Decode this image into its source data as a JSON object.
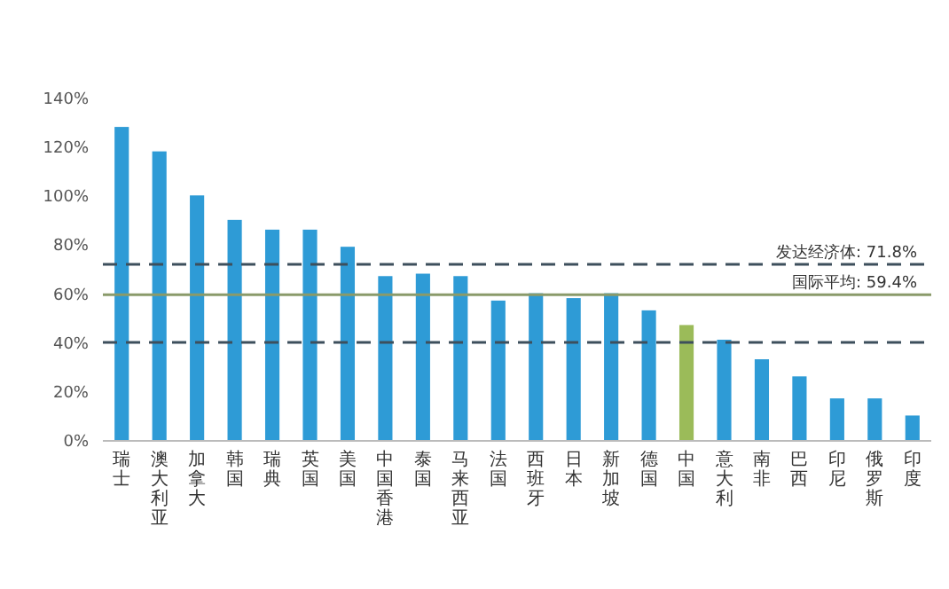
{
  "chart_data": {
    "type": "bar",
    "categories": [
      "瑞士",
      "澳大利亚",
      "加拿大",
      "韩国",
      "瑞典",
      "英国",
      "美国",
      "中国香港",
      "泰国",
      "马来西亚",
      "法国",
      "西班牙",
      "日本",
      "新加坡",
      "德国",
      "中国",
      "意大利",
      "南非",
      "巴西",
      "印尼",
      "俄罗斯",
      "印度"
    ],
    "values": [
      128,
      118,
      100,
      90,
      86,
      86,
      79,
      67,
      68,
      67,
      57,
      60,
      58,
      60,
      53,
      47,
      41,
      33,
      26,
      17,
      17,
      10
    ],
    "colors": [
      "#2e9bd6",
      "#2e9bd6",
      "#2e9bd6",
      "#2e9bd6",
      "#2e9bd6",
      "#2e9bd6",
      "#2e9bd6",
      "#2e9bd6",
      "#2e9bd6",
      "#2e9bd6",
      "#2e9bd6",
      "#2e9bd6",
      "#2e9bd6",
      "#2e9bd6",
      "#2e9bd6",
      "#9bbb59",
      "#2e9bd6",
      "#2e9bd6",
      "#2e9bd6",
      "#2e9bd6",
      "#2e9bd6",
      "#2e9bd6"
    ],
    "ylim": [
      0,
      140
    ],
    "yticks": [
      {
        "value": 0,
        "label": "0%"
      },
      {
        "value": 20,
        "label": "20%"
      },
      {
        "value": 40,
        "label": "40%"
      },
      {
        "value": 60,
        "label": "60%"
      },
      {
        "value": 80,
        "label": "80%"
      },
      {
        "value": 100,
        "label": "100%"
      },
      {
        "value": 120,
        "label": "120%"
      },
      {
        "value": 140,
        "label": "140%"
      }
    ],
    "ref_lines": [
      {
        "axis": "y",
        "value": 71.8,
        "label": "发达经济体: 71.8%",
        "color": "#3d4f5c",
        "line_style": "dashed"
      },
      {
        "axis": "y",
        "value": 59.4,
        "label": "国际平均: 59.4%",
        "color": "#8a9a6a",
        "line_style": "solid"
      },
      {
        "axis": "y",
        "value": 39.9,
        "label": null,
        "color": "#3d4f5c",
        "line_style": "dashed"
      }
    ],
    "grid": false
  }
}
